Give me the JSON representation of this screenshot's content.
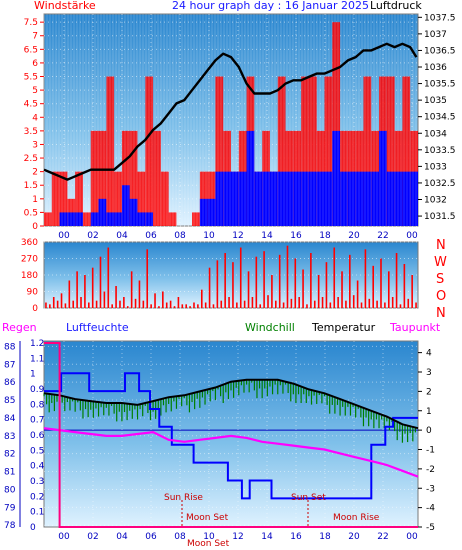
{
  "header": {
    "left_label": "Windstärke",
    "title": "24 hour graph day : 16 Januar 2025",
    "right_label": "Luftdruck"
  },
  "lower_header": {
    "regen": "Regen",
    "luftfeuchte": "Luftfeuchte",
    "windchill": "Windchill",
    "temperatur": "Temperatur",
    "taupunkt": "Taupunkt"
  },
  "direction_letters": [
    "N",
    "W",
    "S",
    "O",
    "N"
  ],
  "x_ticks": [
    "00",
    "02",
    "04",
    "06",
    "08",
    "10",
    "12",
    "14",
    "16",
    "18",
    "20",
    "22",
    "00"
  ],
  "annotations": {
    "sun_rise": "Sun Rise",
    "sun_set": "Sun Set",
    "moon_set_1": "Moon Set",
    "moon_set_2": "Moon Set",
    "moon_rise": "Moon Rise"
  },
  "colors": {
    "wind_gust": "#ff0000",
    "wind_avg": "#0000ff",
    "pressure": "#000000",
    "direction": "#ff0000",
    "temperature": "#000000",
    "windchill": "#008000",
    "dewpoint": "#ff00ff",
    "humidity": "#0000ff",
    "rain": "#ff0080"
  },
  "chart_data": [
    {
      "type": "line",
      "panel": "wind_pressure",
      "xlim": [
        0,
        24
      ],
      "y_left_ticks": [
        "0",
        "0.5",
        "1",
        "1.5",
        "2",
        "2.5",
        "3",
        "3.5",
        "4",
        "4.5",
        "5",
        "5.5",
        "6",
        "6.5",
        "7",
        "7.5"
      ],
      "y_left_lim": [
        0,
        7.8
      ],
      "y_right_ticks": [
        "1031.5",
        "1032",
        "1032.5",
        "1033",
        "1033.5",
        "1034",
        "1034.5",
        "1035",
        "1035.5",
        "1036",
        "1036.5",
        "1037",
        "1037.5"
      ],
      "y_right_lim": [
        1031.2,
        1037.6
      ],
      "series": [
        {
          "role": "pressure",
          "x": [
            0,
            0.5,
            1,
            1.5,
            2,
            2.5,
            3,
            3.5,
            4,
            4.5,
            5,
            5.5,
            6,
            6.5,
            7,
            7.5,
            8,
            8.5,
            9,
            9.5,
            10,
            10.5,
            11,
            11.5,
            12,
            12.5,
            13,
            13.5,
            14,
            14.5,
            15,
            15.5,
            16,
            16.5,
            17,
            17.5,
            18,
            18.5,
            19,
            19.5,
            20,
            20.5,
            21,
            21.5,
            22,
            22.5,
            23,
            23.5,
            23.9
          ],
          "values": [
            1032.9,
            1032.8,
            1032.7,
            1032.6,
            1032.7,
            1032.8,
            1032.9,
            1032.9,
            1032.9,
            1032.9,
            1033.1,
            1033.3,
            1033.6,
            1033.8,
            1034.1,
            1034.3,
            1034.6,
            1034.9,
            1035.0,
            1035.3,
            1035.6,
            1035.9,
            1036.2,
            1036.4,
            1036.3,
            1036.0,
            1035.5,
            1035.2,
            1035.2,
            1035.2,
            1035.3,
            1035.5,
            1035.6,
            1035.6,
            1035.7,
            1035.8,
            1035.8,
            1035.9,
            1036.0,
            1036.2,
            1036.3,
            1036.5,
            1036.5,
            1036.6,
            1036.7,
            1036.6,
            1036.7,
            1036.6,
            1036.3
          ]
        }
      ],
      "wind_bars": {
        "gust_levels": [
          0.5,
          2.0,
          2.0,
          1.0,
          2.0,
          0.5,
          3.5,
          3.5,
          5.5,
          2.0,
          3.5,
          3.5,
          2.0,
          5.5,
          3.5,
          2.0,
          0.5,
          0.0,
          0.0,
          0.5,
          2.0,
          2.0,
          5.5,
          3.5,
          2.0,
          3.5,
          5.5,
          2.0,
          3.5,
          2.0,
          5.5,
          3.5,
          3.5,
          5.5,
          5.5,
          3.5,
          5.5,
          7.5,
          3.5,
          3.5,
          3.5,
          5.5,
          3.5,
          5.5,
          5.5,
          3.5,
          5.5,
          3.5
        ],
        "avg_levels": [
          0.0,
          0.0,
          0.5,
          0.5,
          0.5,
          0.0,
          0.5,
          1.0,
          0.5,
          0.5,
          1.5,
          1.0,
          0.5,
          0.5,
          0.0,
          0.0,
          0.0,
          0.0,
          0.0,
          0.0,
          1.0,
          1.0,
          2.0,
          2.0,
          2.0,
          2.0,
          3.5,
          2.0,
          2.0,
          2.0,
          2.0,
          2.0,
          2.0,
          2.0,
          2.0,
          2.0,
          2.0,
          3.5,
          2.0,
          2.0,
          2.0,
          2.0,
          2.0,
          3.5,
          2.0,
          2.0,
          2.0,
          2.0
        ]
      }
    },
    {
      "type": "bar",
      "panel": "wind_direction",
      "xlim": [
        0,
        24
      ],
      "y_ticks": [
        "360",
        "270",
        "180",
        "90",
        "0"
      ],
      "ylim": [
        0,
        360
      ],
      "values": [
        30,
        20,
        60,
        40,
        80,
        25,
        150,
        40,
        200,
        60,
        180,
        30,
        220,
        40,
        280,
        90,
        330,
        20,
        120,
        40,
        60,
        10,
        200,
        50,
        150,
        40,
        320,
        20,
        80,
        10,
        90,
        30,
        40,
        10,
        60,
        20,
        20,
        10,
        30,
        20,
        100,
        30,
        220,
        20,
        260,
        40,
        300,
        60,
        250,
        30,
        330,
        40,
        200,
        60,
        280,
        20,
        310,
        70,
        180,
        40,
        290,
        30,
        340,
        50,
        270,
        60,
        210,
        20,
        300,
        40,
        180,
        60,
        250,
        30,
        330,
        60,
        200,
        40,
        290,
        70,
        150,
        30,
        320,
        50,
        230,
        40,
        270,
        30,
        200,
        60,
        300,
        20,
        240,
        50,
        180,
        30
      ]
    },
    {
      "type": "line",
      "panel": "temperature_humidity",
      "xlim": [
        0,
        24
      ],
      "y_left1_ticks": [
        "88",
        "87",
        "86",
        "85",
        "84",
        "83",
        "82",
        "81",
        "80",
        "79",
        "78"
      ],
      "y_left2_ticks": [
        "1.2",
        "1.1",
        "1",
        "0.9",
        "0.8",
        "0.7",
        "0.6",
        "0.5",
        "0.4",
        "0.3",
        "0.2",
        "0.1",
        "0"
      ],
      "y_right_ticks": [
        "4",
        "3",
        "2",
        "1",
        "0",
        "-1",
        "-2",
        "-3",
        "-4",
        "-5"
      ],
      "y_right_lim": [
        -5,
        4.6
      ],
      "series": [
        {
          "role": "temperature",
          "x": [
            0,
            1,
            2,
            3,
            4,
            5,
            6,
            7,
            8,
            9,
            10,
            11,
            12,
            13,
            14,
            15,
            16,
            17,
            18,
            19,
            20,
            21,
            22,
            23,
            24
          ],
          "values": [
            1.9,
            1.8,
            1.6,
            1.5,
            1.4,
            1.4,
            1.3,
            1.5,
            1.7,
            1.8,
            2.0,
            2.2,
            2.5,
            2.6,
            2.6,
            2.6,
            2.4,
            2.1,
            1.9,
            1.6,
            1.3,
            1.0,
            0.7,
            0.3,
            0.1
          ]
        },
        {
          "role": "dewpoint",
          "x": [
            0,
            1,
            2,
            3,
            4,
            5,
            6,
            7,
            8,
            9,
            10,
            11,
            12,
            13,
            14,
            15,
            16,
            17,
            18,
            19,
            20,
            21,
            22,
            23,
            24
          ],
          "values": [
            0.1,
            0.0,
            -0.1,
            -0.2,
            -0.3,
            -0.3,
            -0.2,
            -0.1,
            -0.5,
            -0.6,
            -0.5,
            -0.4,
            -0.3,
            -0.4,
            -0.6,
            -0.7,
            -0.8,
            -0.9,
            -1.0,
            -1.2,
            -1.4,
            -1.6,
            -1.8,
            -2.1,
            -2.4
          ]
        },
        {
          "role": "humidity",
          "x": [
            0,
            1.1,
            1.1,
            2.9,
            2.9,
            5.2,
            5.2,
            6.1,
            6.1,
            6.8,
            6.8,
            7.4,
            7.4,
            8.2,
            8.2,
            9.6,
            9.6,
            10.2,
            10.2,
            11.8,
            11.8,
            12.7,
            12.7,
            13.2,
            13.2,
            14.6,
            14.6,
            15.2,
            15.2,
            17.6,
            17.6,
            21.0,
            21.0,
            21.9,
            21.9,
            22.4,
            22.4,
            24
          ],
          "values": [
            85.5,
            85.5,
            86.5,
            86.5,
            85.5,
            85.5,
            86.5,
            86.5,
            85.5,
            85.5,
            84.5,
            84.5,
            83.5,
            83.5,
            82.5,
            82.5,
            81.5,
            81.5,
            81.5,
            81.5,
            80.5,
            80.5,
            79.5,
            79.5,
            80.5,
            80.5,
            79.5,
            79.5,
            79.5,
            79.5,
            79.5,
            79.5,
            82.5,
            82.5,
            83.5,
            83.5,
            84.0,
            84.0
          ]
        },
        {
          "role": "rain",
          "x": [
            0,
            1.0,
            1.0,
            24
          ],
          "values": [
            1.2,
            1.2,
            0,
            0
          ]
        }
      ]
    }
  ]
}
